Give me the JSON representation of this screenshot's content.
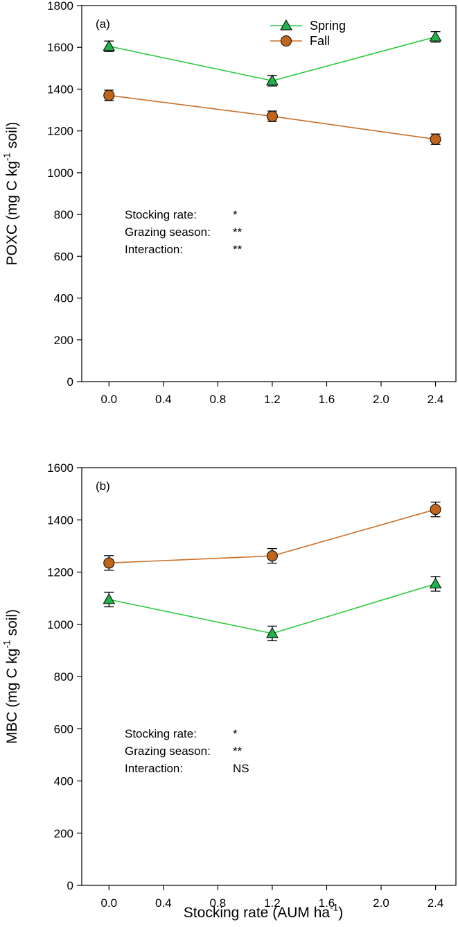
{
  "chart_data": [
    {
      "type": "line",
      "panel_label": "(a)",
      "ylabel": "POXC (mg C kg-1 soil)",
      "ylabel_parts": {
        "pre": "POXC (mg C kg",
        "sup": "-1",
        "post": " soil)"
      },
      "xlabel": "",
      "x": [
        0.0,
        1.2,
        2.4
      ],
      "xlim": [
        -0.2,
        2.55
      ],
      "ylim": [
        0,
        1800
      ],
      "x_ticks": [
        "0.0",
        "0.4",
        "0.8",
        "1.2",
        "1.6",
        "2.0",
        "2.4"
      ],
      "x_tick_values": [
        0.0,
        0.4,
        0.8,
        1.2,
        1.6,
        2.0,
        2.4
      ],
      "y_ticks": [
        "0",
        "200",
        "400",
        "600",
        "800",
        "1000",
        "1200",
        "1400",
        "1600",
        "1800"
      ],
      "y_tick_values": [
        0,
        200,
        400,
        600,
        800,
        1000,
        1200,
        1400,
        1600,
        1800
      ],
      "legend_position": "top-center",
      "series": [
        {
          "name": "Spring",
          "marker": "triangle",
          "color": "#22b14c",
          "line_color": "#2ecc40",
          "values": [
            1605,
            1440,
            1650
          ],
          "errors": [
            25,
            25,
            25
          ]
        },
        {
          "name": "Fall",
          "marker": "circle",
          "color": "#c0651c",
          "line_color": "#c8702a",
          "values": [
            1370,
            1270,
            1160
          ],
          "errors": [
            25,
            25,
            25
          ]
        }
      ],
      "stats": [
        {
          "label": "Stocking rate:",
          "value": "*"
        },
        {
          "label": "Grazing season:",
          "value": "**"
        },
        {
          "label": "Interaction:",
          "value": "**"
        }
      ]
    },
    {
      "type": "line",
      "panel_label": "(b)",
      "ylabel": "MBC (mg C kg-1 soil)",
      "ylabel_parts": {
        "pre": "MBC (mg C kg",
        "sup": "-1",
        "post": " soil)"
      },
      "xlabel": "Stocking rate (AUM ha-1)",
      "xlabel_parts": {
        "pre": "Stocking rate (AUM ha",
        "sup": "-1",
        "post": ")"
      },
      "x": [
        0.0,
        1.2,
        2.4
      ],
      "xlim": [
        -0.2,
        2.55
      ],
      "ylim": [
        0,
        1600
      ],
      "x_ticks": [
        "0.0",
        "0.4",
        "0.8",
        "1.2",
        "1.6",
        "2.0",
        "2.4"
      ],
      "x_tick_values": [
        0.0,
        0.4,
        0.8,
        1.2,
        1.6,
        2.0,
        2.4
      ],
      "y_ticks": [
        "0",
        "200",
        "400",
        "600",
        "800",
        "1000",
        "1200",
        "1400",
        "1600"
      ],
      "y_tick_values": [
        0,
        200,
        400,
        600,
        800,
        1000,
        1200,
        1400,
        1600
      ],
      "series": [
        {
          "name": "Spring",
          "marker": "triangle",
          "color": "#22b14c",
          "line_color": "#2ecc40",
          "values": [
            1095,
            965,
            1155
          ],
          "errors": [
            28,
            28,
            28
          ]
        },
        {
          "name": "Fall",
          "marker": "circle",
          "color": "#c0651c",
          "line_color": "#c8702a",
          "values": [
            1235,
            1262,
            1440
          ],
          "errors": [
            28,
            28,
            28
          ]
        }
      ],
      "stats": [
        {
          "label": "Stocking rate:",
          "value": "*"
        },
        {
          "label": "Grazing season:",
          "value": "**"
        },
        {
          "label": "Interaction:",
          "value": "NS"
        }
      ]
    }
  ]
}
